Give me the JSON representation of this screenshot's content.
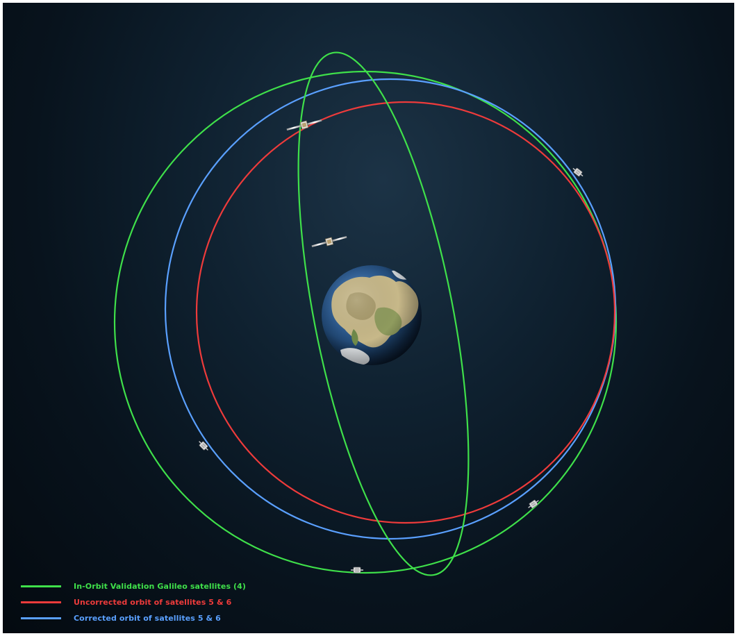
{
  "colors": {
    "iov": "#3fe04a",
    "uncorrected": "#ee3b3b",
    "corrected": "#5aa0ff",
    "space_dark": "#061019"
  },
  "legend": {
    "items": [
      {
        "label": "In-Orbit Validation Galileo satellites (4)",
        "color": "#3fe04a"
      },
      {
        "label": "Uncorrected orbit of satellites 5 & 6",
        "color": "#ee3b3b"
      },
      {
        "label": "Corrected orbit of satellites 5 & 6",
        "color": "#5aa0ff"
      }
    ]
  },
  "icons": [
    "earth-icon",
    "satellite-icon"
  ]
}
